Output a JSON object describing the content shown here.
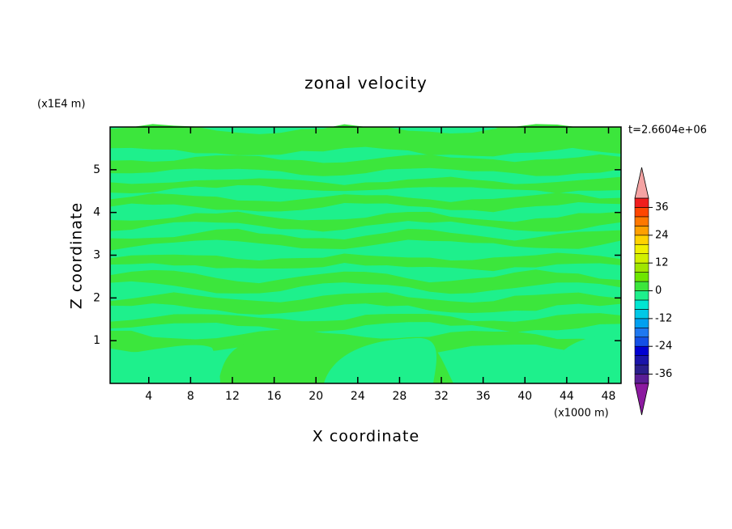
{
  "chart_data": {
    "type": "contour",
    "title": "zonal velocity",
    "xlabel": "X coordinate",
    "ylabel": "Z coordinate",
    "x_unit_label": "(x1000 m)",
    "y_unit_label": "(x1E4 m)",
    "annotation": "t=2.6604e+06",
    "xlim": [
      0.3,
      49.2
    ],
    "xticks": [
      4,
      8,
      12,
      16,
      20,
      24,
      28,
      32,
      36,
      40,
      44,
      48
    ],
    "ylim": [
      0,
      6
    ],
    "yticks": [
      1,
      2,
      3,
      4,
      5
    ],
    "levels": [
      -40,
      -36,
      -32,
      -28,
      -24,
      -20,
      -16,
      -12,
      -8,
      -4,
      0,
      4,
      8,
      12,
      16,
      20,
      24,
      28,
      32,
      36,
      40
    ],
    "level_colors": [
      "#5a1e96",
      "#2a1e8c",
      "#1a14aa",
      "#0000d2",
      "#1450e6",
      "#1e78f0",
      "#00a0f0",
      "#00c8e6",
      "#00e6d2",
      "#1ef08c",
      "#3ce63c",
      "#6ee600",
      "#a0e600",
      "#d2f000",
      "#f0f000",
      "#ffd200",
      "#ffa000",
      "#ff7800",
      "#ff4600",
      "#f01e1e"
    ],
    "under_color": "#8c1aa0",
    "over_color": "#f4a3a3",
    "colorbar_ticks": [
      -36,
      -24,
      -12,
      0,
      12,
      24,
      36
    ]
  }
}
